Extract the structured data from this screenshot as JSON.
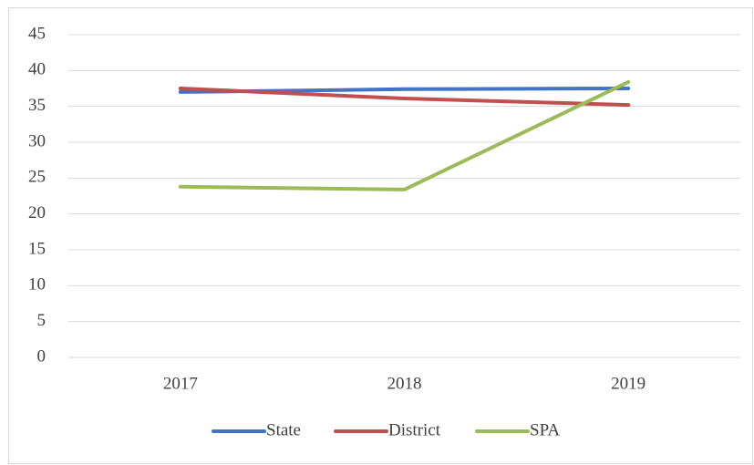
{
  "chart_data": {
    "type": "line",
    "categories": [
      "2017",
      "2018",
      "2019"
    ],
    "series": [
      {
        "name": "State",
        "color": "#4472c4",
        "values": [
          37.0,
          37.4,
          37.5
        ]
      },
      {
        "name": "District",
        "color": "#c0504d",
        "values": [
          37.5,
          36.1,
          35.2
        ]
      },
      {
        "name": "SPA",
        "color": "#9bbb59",
        "values": [
          23.8,
          23.4,
          38.4
        ]
      }
    ],
    "ylim": [
      0,
      45
    ],
    "yticks": [
      0,
      5,
      10,
      15,
      20,
      25,
      30,
      35,
      40,
      45
    ],
    "grid": true,
    "legend": "bottom"
  }
}
